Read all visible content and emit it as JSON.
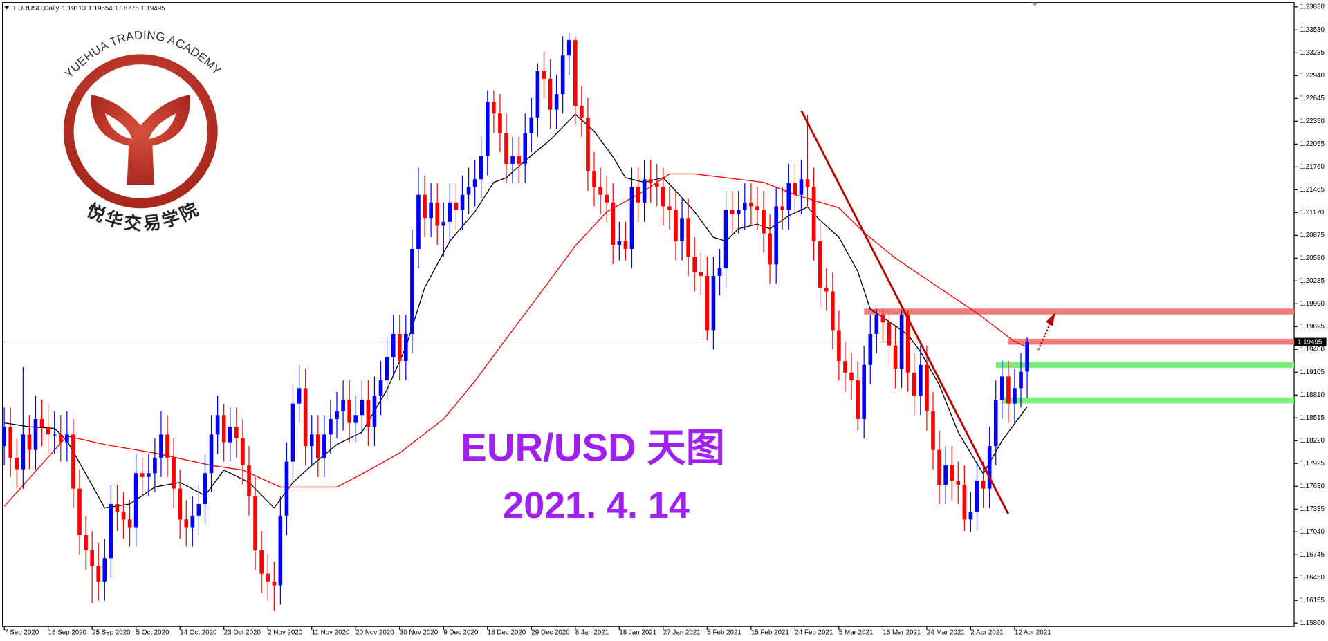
{
  "chart_data": {
    "type": "candlestick",
    "symbol": "EURUSD,Daily",
    "title": "EUR/USD 天图",
    "subtitle": "2021. 4. 14",
    "logo_text": "YUEHUA TRADING ACADEMY",
    "logo_text_cn": "悦华交易学院",
    "colors": {
      "up": "#0000ff",
      "down": "#ff0000"
    },
    "ylim": [
      1.15816,
      1.23885
    ],
    "yticks": [
      {
        "value": 1.1586,
        "label": "1.15860"
      },
      1.16155,
      {
        "value": 1.1645,
        "label": "1.16450"
      },
      1.16745,
      {
        "value": 1.1704,
        "label": "1.17040"
      },
      1.17335,
      {
        "value": 1.1763,
        "label": "1.17630"
      },
      1.17925,
      {
        "value": 1.1822,
        "label": "1.18220"
      },
      1.18515,
      {
        "value": 1.1881,
        "label": "1.18810"
      },
      1.19105,
      {
        "value": 1.194,
        "label": "1.19400"
      },
      1.19695,
      {
        "value": 1.1999,
        "label": "1.19990"
      },
      1.20285,
      {
        "value": 1.2058,
        "label": "1.20580"
      },
      1.20875,
      {
        "value": 1.2117,
        "label": "1.21170"
      },
      1.21465,
      {
        "value": 1.2176,
        "label": "1.21760"
      },
      1.22055,
      {
        "value": 1.2235,
        "label": "1.22350"
      },
      1.22645,
      {
        "value": 1.2294,
        "label": "1.22940"
      },
      1.23235,
      {
        "value": 1.2353,
        "label": "1.23530"
      },
      {
        "value": 1.2383,
        "label": "1.23830"
      }
    ],
    "xticks": [
      {
        "value": 0,
        "label": "7 Sep 2020"
      },
      {
        "value": 7,
        "label": "16 Sep 2020"
      },
      {
        "value": 14,
        "label": "25 Sep 2020"
      },
      {
        "value": 21,
        "label": "5 Oct 2020"
      },
      {
        "value": 28,
        "label": "14 Oct 2020"
      },
      {
        "value": 35,
        "label": "23 Oct 2020"
      },
      {
        "value": 42,
        "label": "2 Nov 2020"
      },
      {
        "value": 49,
        "label": "11 Nov 2020"
      },
      {
        "value": 56,
        "label": "20 Nov 2020"
      },
      {
        "value": 63,
        "label": "30 Nov 2020"
      },
      {
        "value": 70,
        "label": "9 Dec 2020"
      },
      {
        "value": 77,
        "label": "18 Dec 2020"
      },
      {
        "value": 84,
        "label": "29 Dec 2020"
      },
      {
        "value": 91,
        "label": "8 Jan 2021"
      },
      {
        "value": 98,
        "label": "18 Jan 2021"
      },
      {
        "value": 105,
        "label": "27 Jan 2021"
      },
      {
        "value": 112,
        "label": "5 Feb 2021"
      },
      {
        "value": 119,
        "label": "15 Feb 2021"
      },
      {
        "value": 126,
        "label": "24 Feb 2021"
      },
      {
        "value": 133,
        "label": "5 Mar 2021"
      },
      {
        "value": 140,
        "label": "15 Mar 2021"
      },
      {
        "value": 147,
        "label": "24 Mar 2021"
      },
      {
        "value": 154,
        "label": "2 Apr 2021"
      },
      {
        "value": 161,
        "label": "12 Apr 2021"
      }
    ],
    "candles": [
      [
        1.1815,
        1.1865,
        1.179,
        1.184
      ],
      [
        1.184,
        1.1865,
        1.1775,
        1.18
      ],
      [
        1.18,
        1.1825,
        1.176,
        1.1785
      ],
      [
        1.1785,
        1.1917,
        1.176,
        1.183
      ],
      [
        1.183,
        1.1855,
        1.1785,
        1.181
      ],
      [
        1.181,
        1.188,
        1.1785,
        1.185
      ],
      [
        1.185,
        1.1875,
        1.1815,
        1.184
      ],
      [
        1.184,
        1.187,
        1.1805,
        1.183
      ],
      [
        1.183,
        1.186,
        1.1805,
        1.183
      ],
      [
        1.183,
        1.1855,
        1.1795,
        1.182
      ],
      [
        1.182,
        1.186,
        1.1795,
        1.183
      ],
      [
        1.183,
        1.185,
        1.1735,
        1.176
      ],
      [
        1.176,
        1.1785,
        1.1675,
        1.17
      ],
      [
        1.17,
        1.1725,
        1.1655,
        1.168
      ],
      [
        1.168,
        1.1705,
        1.1612,
        1.166
      ],
      [
        1.166,
        1.169,
        1.1615,
        1.164
      ],
      [
        1.164,
        1.1695,
        1.1615,
        1.167
      ],
      [
        1.167,
        1.1765,
        1.1645,
        1.174
      ],
      [
        1.174,
        1.1765,
        1.1705,
        1.173
      ],
      [
        1.173,
        1.1755,
        1.1695,
        1.172
      ],
      [
        1.172,
        1.1745,
        1.1685,
        1.171
      ],
      [
        1.171,
        1.1805,
        1.1685,
        1.178
      ],
      [
        1.178,
        1.18,
        1.175,
        1.1775
      ],
      [
        1.1775,
        1.1805,
        1.175,
        1.178
      ],
      [
        1.178,
        1.1825,
        1.1755,
        1.18
      ],
      [
        1.18,
        1.186,
        1.1775,
        1.183
      ],
      [
        1.183,
        1.1855,
        1.1775,
        1.18
      ],
      [
        1.18,
        1.1825,
        1.1735,
        1.176
      ],
      [
        1.176,
        1.1785,
        1.1695,
        1.172
      ],
      [
        1.172,
        1.1745,
        1.1685,
        1.171
      ],
      [
        1.171,
        1.175,
        1.1685,
        1.1725
      ],
      [
        1.1725,
        1.1765,
        1.17,
        1.174
      ],
      [
        1.174,
        1.1805,
        1.1715,
        1.178
      ],
      [
        1.178,
        1.1855,
        1.1755,
        1.183
      ],
      [
        1.183,
        1.188,
        1.1805,
        1.1855
      ],
      [
        1.1855,
        1.187,
        1.1795,
        1.182
      ],
      [
        1.182,
        1.1865,
        1.1795,
        1.184
      ],
      [
        1.184,
        1.1865,
        1.18,
        1.1825
      ],
      [
        1.1825,
        1.185,
        1.1765,
        1.179
      ],
      [
        1.179,
        1.1815,
        1.1725,
        1.175
      ],
      [
        1.175,
        1.1775,
        1.1655,
        1.168
      ],
      [
        1.168,
        1.1705,
        1.1625,
        1.165
      ],
      [
        1.165,
        1.1675,
        1.1615,
        1.164
      ],
      [
        1.164,
        1.1665,
        1.1602,
        1.1635
      ],
      [
        1.1635,
        1.175,
        1.161,
        1.1725
      ],
      [
        1.1725,
        1.182,
        1.17,
        1.1795
      ],
      [
        1.1795,
        1.1895,
        1.177,
        1.187
      ],
      [
        1.187,
        1.192,
        1.1845,
        1.189
      ],
      [
        1.189,
        1.1915,
        1.179,
        1.1815
      ],
      [
        1.1815,
        1.1855,
        1.179,
        1.183
      ],
      [
        1.183,
        1.1855,
        1.1775,
        1.18
      ],
      [
        1.18,
        1.1855,
        1.1775,
        1.183
      ],
      [
        1.183,
        1.1875,
        1.1805,
        1.185
      ],
      [
        1.185,
        1.1885,
        1.1825,
        1.186
      ],
      [
        1.186,
        1.19,
        1.1835,
        1.1875
      ],
      [
        1.1875,
        1.19,
        1.182,
        1.1845
      ],
      [
        1.1845,
        1.188,
        1.182,
        1.1855
      ],
      [
        1.1855,
        1.19,
        1.183,
        1.1875
      ],
      [
        1.1875,
        1.19,
        1.1815,
        1.184
      ],
      [
        1.184,
        1.1905,
        1.1815,
        1.188
      ],
      [
        1.188,
        1.1925,
        1.1855,
        1.19
      ],
      [
        1.19,
        1.1955,
        1.1875,
        1.193
      ],
      [
        1.193,
        1.1985,
        1.1905,
        1.196
      ],
      [
        1.196,
        1.1985,
        1.19,
        1.1925
      ],
      [
        1.1925,
        1.1985,
        1.19,
        1.196
      ],
      [
        1.196,
        1.2095,
        1.1935,
        1.207
      ],
      [
        1.207,
        1.2175,
        1.2045,
        1.214
      ],
      [
        1.214,
        1.2165,
        1.2085,
        1.211
      ],
      [
        1.211,
        1.2155,
        1.2085,
        1.213
      ],
      [
        1.213,
        1.2155,
        1.2075,
        1.21
      ],
      [
        1.21,
        1.213,
        1.206,
        1.2105
      ],
      [
        1.2105,
        1.2155,
        1.208,
        1.213
      ],
      [
        1.213,
        1.2155,
        1.2095,
        1.212
      ],
      [
        1.212,
        1.2165,
        1.2095,
        1.214
      ],
      [
        1.214,
        1.2175,
        1.2115,
        1.215
      ],
      [
        1.215,
        1.2185,
        1.2125,
        1.216
      ],
      [
        1.216,
        1.2215,
        1.2135,
        1.219
      ],
      [
        1.219,
        1.2275,
        1.2165,
        1.226
      ],
      [
        1.226,
        1.2275,
        1.222,
        1.2245
      ],
      [
        1.2245,
        1.227,
        1.2195,
        1.222
      ],
      [
        1.222,
        1.2245,
        1.2155,
        1.218
      ],
      [
        1.218,
        1.2215,
        1.2155,
        1.219
      ],
      [
        1.219,
        1.2215,
        1.2155,
        1.218
      ],
      [
        1.218,
        1.2245,
        1.2155,
        1.222
      ],
      [
        1.222,
        1.2265,
        1.2195,
        1.224
      ],
      [
        1.224,
        1.231,
        1.2215,
        1.23
      ],
      [
        1.23,
        1.2325,
        1.2265,
        1.229
      ],
      [
        1.229,
        1.2315,
        1.2225,
        1.225
      ],
      [
        1.225,
        1.2295,
        1.2225,
        1.227
      ],
      [
        1.227,
        1.2345,
        1.2245,
        1.232
      ],
      [
        1.232,
        1.2349,
        1.2295,
        1.234
      ],
      [
        1.234,
        1.2345,
        1.223,
        1.2255
      ],
      [
        1.2255,
        1.228,
        1.2215,
        1.224
      ],
      [
        1.224,
        1.2265,
        1.2145,
        1.217
      ],
      [
        1.217,
        1.2195,
        1.2125,
        1.215
      ],
      [
        1.215,
        1.2175,
        1.2115,
        1.214
      ],
      [
        1.214,
        1.2165,
        1.2105,
        1.213
      ],
      [
        1.213,
        1.2155,
        1.205,
        1.2075
      ],
      [
        1.2075,
        1.2105,
        1.2055,
        1.208
      ],
      [
        1.208,
        1.2105,
        1.2055,
        1.207
      ],
      [
        1.207,
        1.2175,
        1.2045,
        1.215
      ],
      [
        1.215,
        1.2175,
        1.2105,
        1.213
      ],
      [
        1.213,
        1.2185,
        1.2105,
        1.216
      ],
      [
        1.216,
        1.2185,
        1.213,
        1.2155
      ],
      [
        1.2155,
        1.218,
        1.2125,
        1.215
      ],
      [
        1.215,
        1.2175,
        1.21,
        1.2125
      ],
      [
        1.2125,
        1.215,
        1.2095,
        1.212
      ],
      [
        1.212,
        1.2145,
        1.2055,
        1.208
      ],
      [
        1.208,
        1.2135,
        1.2055,
        1.211
      ],
      [
        1.211,
        1.2135,
        1.2035,
        1.206
      ],
      [
        1.206,
        1.2085,
        1.2015,
        1.204
      ],
      [
        1.204,
        1.2065,
        1.201,
        1.2035
      ],
      [
        1.2035,
        1.206,
        1.1952,
        1.1965
      ],
      [
        1.1965,
        1.206,
        1.194,
        1.2035
      ],
      [
        1.2035,
        1.207,
        1.201,
        1.2045
      ],
      [
        1.2045,
        1.2145,
        1.202,
        1.212
      ],
      [
        1.212,
        1.2145,
        1.209,
        1.2115
      ],
      [
        1.2115,
        1.2145,
        1.209,
        1.212
      ],
      [
        1.212,
        1.2155,
        1.2095,
        1.213
      ],
      [
        1.213,
        1.2155,
        1.21,
        1.2125
      ],
      [
        1.2125,
        1.215,
        1.2095,
        1.212
      ],
      [
        1.212,
        1.2145,
        1.2065,
        1.209
      ],
      [
        1.209,
        1.2115,
        1.2025,
        1.205
      ],
      [
        1.205,
        1.215,
        1.2025,
        1.2125
      ],
      [
        1.2125,
        1.215,
        1.2095,
        1.212
      ],
      [
        1.212,
        1.218,
        1.2095,
        1.2155
      ],
      [
        1.2155,
        1.218,
        1.2115,
        1.214
      ],
      [
        1.214,
        1.2185,
        1.2115,
        1.216
      ],
      [
        1.216,
        1.2243,
        1.2125,
        1.215
      ],
      [
        1.215,
        1.2175,
        1.2055,
        1.208
      ],
      [
        1.208,
        1.2105,
        1.1995,
        1.202
      ],
      [
        1.202,
        1.2045,
        1.199,
        1.2015
      ],
      [
        1.2015,
        1.204,
        1.194,
        1.1965
      ],
      [
        1.1965,
        1.199,
        1.19,
        1.1925
      ],
      [
        1.1925,
        1.195,
        1.1885,
        1.191
      ],
      [
        1.191,
        1.1935,
        1.1875,
        1.19
      ],
      [
        1.19,
        1.1925,
        1.1835,
        1.185
      ],
      [
        1.185,
        1.1945,
        1.1825,
        1.192
      ],
      [
        1.192,
        1.1985,
        1.1895,
        1.196
      ],
      [
        1.196,
        1.1992,
        1.1935,
        1.1985
      ],
      [
        1.1985,
        1.1992,
        1.195,
        1.1975
      ],
      [
        1.1975,
        1.199,
        1.192,
        1.1945
      ],
      [
        1.1945,
        1.197,
        1.189,
        1.1915
      ],
      [
        1.1915,
        1.199,
        1.189,
        1.1985
      ],
      [
        1.1985,
        1.199,
        1.1885,
        1.191
      ],
      [
        1.191,
        1.1935,
        1.1855,
        1.188
      ],
      [
        1.188,
        1.1945,
        1.1855,
        1.192
      ],
      [
        1.192,
        1.1945,
        1.1835,
        1.186
      ],
      [
        1.186,
        1.1885,
        1.1785,
        1.181
      ],
      [
        1.181,
        1.1835,
        1.174,
        1.1765
      ],
      [
        1.1765,
        1.1815,
        1.174,
        1.179
      ],
      [
        1.179,
        1.1815,
        1.1745,
        1.177
      ],
      [
        1.177,
        1.1795,
        1.174,
        1.1765
      ],
      [
        1.1765,
        1.179,
        1.1705,
        1.172
      ],
      [
        1.172,
        1.1755,
        1.1704,
        1.173
      ],
      [
        1.173,
        1.1795,
        1.1705,
        1.177
      ],
      [
        1.177,
        1.1795,
        1.1735,
        1.176
      ],
      [
        1.176,
        1.184,
        1.1735,
        1.1815
      ],
      [
        1.1815,
        1.19,
        1.179,
        1.1875
      ],
      [
        1.1875,
        1.1927,
        1.185,
        1.1905
      ],
      [
        1.1905,
        1.1925,
        1.1845,
        1.187
      ],
      [
        1.187,
        1.1915,
        1.1845,
        1.189
      ],
      [
        1.189,
        1.1935,
        1.1865,
        1.1911
      ],
      [
        1.19113,
        1.19554,
        1.18776,
        1.19495
      ]
    ],
    "series": [
      {
        "color": "#000000",
        "x": [
          0,
          4,
          8,
          10,
          13,
          16,
          20,
          24,
          28,
          32,
          35,
          39,
          43,
          46,
          49,
          53,
          57,
          61,
          64,
          67,
          71,
          75,
          78,
          80,
          83,
          87,
          91,
          94,
          97,
          99,
          102,
          105,
          107,
          110,
          113,
          115,
          117,
          120,
          122,
          125,
          128,
          130,
          133,
          136,
          138,
          141,
          144,
          146,
          149,
          152,
          156,
          159,
          161,
          163
        ],
        "values": [
          1.1845,
          1.184,
          1.1838,
          1.1822,
          1.1779,
          1.1735,
          1.174,
          1.1762,
          1.1768,
          1.1751,
          1.1784,
          1.1768,
          1.1735,
          1.1768,
          1.179,
          1.1817,
          1.1833,
          1.1888,
          1.1943,
          1.202,
          1.208,
          1.2118,
          1.2156,
          1.2162,
          1.2184,
          1.2211,
          1.2244,
          1.2222,
          1.2189,
          1.2162,
          1.2156,
          1.2162,
          1.2145,
          1.2118,
          1.2085,
          1.208,
          1.2096,
          1.2102,
          1.2096,
          1.2113,
          1.2124,
          1.2107,
          1.2085,
          1.2041,
          1.1992,
          1.1976,
          1.1959,
          1.1937,
          1.1894,
          1.1833,
          1.1779,
          1.1822,
          1.1844,
          1.1866
        ]
      },
      {
        "color": "#ff0000",
        "x": [
          0,
          10,
          16,
          24,
          33,
          38,
          44,
          53,
          57,
          63,
          70,
          75,
          80,
          86,
          91,
          96,
          102,
          106,
          110,
          115,
          121,
          126,
          133,
          137,
          142,
          148,
          155,
          161,
          163
        ],
        "values": [
          1.1737,
          1.1828,
          1.1817,
          1.1806,
          1.179,
          1.1784,
          1.1762,
          1.1762,
          1.1779,
          1.1806,
          1.185,
          1.1899,
          1.1954,
          1.2019,
          1.2074,
          1.2118,
          1.2145,
          1.2167,
          1.2167,
          1.2162,
          1.2156,
          1.214,
          1.2123,
          1.2091,
          1.2058,
          1.2025,
          1.1987,
          1.195,
          1.1943
        ]
      }
    ],
    "levels": [
      {
        "start": 137,
        "value": 1.1989,
        "color": "#f47b7b"
      },
      {
        "start": 160,
        "value": 1.195,
        "color": "#f47b7b"
      },
      {
        "start": 158,
        "value": 1.192,
        "color": "#7cf07c"
      },
      {
        "start": 159,
        "value": 1.1874,
        "color": "#7cf07c"
      }
    ],
    "trendline": {
      "x": [
        127,
        160
      ],
      "values": [
        1.2249,
        1.1727
      ],
      "color": "#c00000"
    }
  }
}
